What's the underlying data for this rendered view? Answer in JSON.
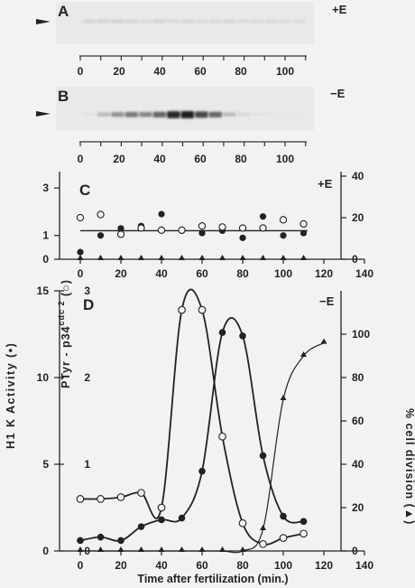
{
  "gels": [
    {
      "panel": "A",
      "condition": "+E",
      "ticks": [
        "0",
        "20",
        "40",
        "60",
        "80",
        "100"
      ],
      "band_intensity": [
        0.12,
        0.12,
        0.14,
        0.12,
        0.1,
        0.12,
        0.1,
        0.12,
        0.1,
        0.1,
        0.12,
        0.1,
        0.1,
        0.1,
        0.08,
        0.08
      ]
    },
    {
      "panel": "B",
      "condition": "−E",
      "ticks": [
        "0",
        "20",
        "40",
        "60",
        "80",
        "100"
      ],
      "band_intensity": [
        0.05,
        0.25,
        0.45,
        0.55,
        0.5,
        0.65,
        0.95,
        1.0,
        0.8,
        0.65,
        0.25,
        0.1,
        0.05,
        0.03,
        0.02,
        0.02
      ]
    }
  ],
  "chart_data": [
    {
      "type": "scatter",
      "panel": "C",
      "condition": "+E",
      "xlim": [
        0,
        140
      ],
      "left_ylim": [
        0,
        3.5
      ],
      "right_ylim": [
        0,
        40
      ],
      "x_ticks": [
        "0",
        "20",
        "40",
        "60",
        "80",
        "100",
        "120",
        "140"
      ],
      "left_y_ticks": [
        "0",
        "1",
        "3"
      ],
      "right_y_ticks": [
        "0",
        "20",
        "40"
      ],
      "series": [
        {
          "name": "H1 K activity",
          "marker": "filled-circle",
          "axis": "left",
          "x": [
            0,
            10,
            20,
            30,
            40,
            50,
            60,
            70,
            80,
            90,
            100,
            110
          ],
          "y": [
            0.3,
            1.0,
            1.3,
            1.4,
            1.9,
            1.2,
            1.1,
            1.2,
            0.9,
            1.8,
            1.0,
            1.1
          ]
        },
        {
          "name": "PTyr-p34cdc2",
          "marker": "open-circle",
          "axis": "right",
          "x": [
            0,
            10,
            20,
            30,
            40,
            50,
            60,
            70,
            80,
            90,
            100,
            110
          ],
          "y": [
            20,
            21.5,
            12,
            15,
            14,
            14,
            16,
            15.5,
            15,
            15,
            19,
            17
          ]
        },
        {
          "name": "% cell division",
          "marker": "filled-triangle",
          "axis": "right",
          "x": [
            0,
            10,
            20,
            30,
            40,
            50,
            60,
            70,
            80,
            90,
            100,
            110
          ],
          "y": [
            0,
            0,
            0,
            0,
            0,
            0,
            0,
            0,
            0,
            0,
            0,
            0
          ]
        }
      ],
      "fit_line_value": 1.2
    },
    {
      "type": "line",
      "panel": "D",
      "condition": "−E",
      "xlim": [
        0,
        140
      ],
      "left_ylim": [
        0,
        15
      ],
      "mid_ylim": [
        0,
        3
      ],
      "right_ylim": [
        0,
        120
      ],
      "x_ticks": [
        "0",
        "20",
        "40",
        "60",
        "80",
        "100",
        "120",
        "140"
      ],
      "left_y_ticks": [
        "0",
        "5",
        "10",
        "15"
      ],
      "mid_y_ticks": [
        "0",
        "1",
        "2",
        "3"
      ],
      "right_y_ticks": [
        "0",
        "20",
        "40",
        "60",
        "80",
        "100"
      ],
      "xlabel": "Time after fertilization (min.)",
      "left_ylabel": "H1 K Activity",
      "left_ylabel_marker": "(•)",
      "mid_ylabel": "PTyr - p34",
      "mid_ylabel_sup": "cdc 2",
      "mid_ylabel_marker": "(○)",
      "right_ylabel": "% cell division",
      "right_ylabel_marker": "(▲)",
      "series": [
        {
          "name": "H1 K activity",
          "marker": "filled-circle",
          "axis": "left",
          "x": [
            0,
            10,
            20,
            30,
            40,
            50,
            60,
            70,
            80,
            90,
            100,
            110
          ],
          "y": [
            0.6,
            0.8,
            0.6,
            1.4,
            1.8,
            1.9,
            4.6,
            12.6,
            12.4,
            5.5,
            2.0,
            1.7
          ]
        },
        {
          "name": "PTyr-p34cdc2",
          "marker": "open-circle",
          "axis": "mid",
          "x": [
            0,
            10,
            20,
            30,
            40,
            50,
            60,
            70,
            80,
            90,
            100,
            110
          ],
          "y": [
            0.6,
            0.6,
            0.62,
            0.67,
            0.5,
            2.78,
            2.78,
            1.32,
            0.32,
            0.08,
            0.15,
            0.2
          ]
        },
        {
          "name": "% cell division",
          "marker": "filled-triangle",
          "axis": "right",
          "x": [
            0,
            10,
            20,
            30,
            40,
            50,
            60,
            70,
            80,
            90,
            100,
            110,
            120
          ],
          "y": [
            0,
            0,
            0,
            0,
            0,
            0,
            0,
            0,
            0,
            10,
            70,
            90,
            96
          ]
        }
      ]
    }
  ]
}
